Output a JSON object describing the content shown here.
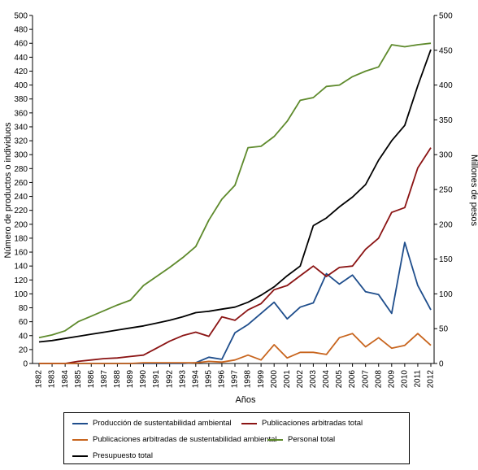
{
  "chart_data": {
    "type": "line",
    "xlabel": "Años",
    "ylabel_left": "Número de productos o individuos",
    "ylabel_right": "Millones de pesos",
    "ylim_left": [
      0,
      500
    ],
    "ylim_right": [
      0,
      500
    ],
    "yticks_left": [
      0,
      20,
      40,
      60,
      80,
      100,
      120,
      140,
      160,
      180,
      200,
      220,
      240,
      260,
      280,
      300,
      320,
      340,
      360,
      380,
      400,
      420,
      440,
      460,
      480,
      500
    ],
    "yticks_right": [
      0,
      50,
      100,
      150,
      200,
      250,
      300,
      350,
      400,
      450,
      500
    ],
    "grid": false,
    "legend_position": "bottom",
    "x": [
      "1982",
      "1983",
      "1984",
      "1985",
      "1986",
      "1987",
      "1988",
      "1989",
      "1990",
      "1991",
      "1992",
      "1993",
      "1994",
      "1995",
      "1996",
      "1997",
      "1998",
      "1999",
      "2000",
      "2001",
      "2002",
      "2003",
      "2004",
      "2005",
      "2006",
      "2007",
      "2008",
      "2009",
      "2010",
      "2011",
      "2012"
    ],
    "series": [
      {
        "name": "Producción de sustentabilidad ambiental",
        "color": "#1f4e8c",
        "axis": "left",
        "values": [
          0,
          0,
          0,
          0,
          0,
          0,
          0,
          0,
          0,
          0,
          0,
          0,
          1,
          9,
          6,
          44,
          56,
          72,
          88,
          64,
          81,
          87,
          129,
          114,
          127,
          103,
          99,
          72,
          174,
          112,
          77
        ]
      },
      {
        "name": "Publicaciones arbitradas total",
        "color": "#8b1414",
        "axis": "left",
        "values": [
          0,
          0,
          0,
          3,
          5,
          7,
          8,
          10,
          12,
          22,
          32,
          40,
          45,
          39,
          67,
          62,
          77,
          86,
          106,
          112,
          126,
          140,
          125,
          138,
          140,
          164,
          180,
          217,
          224,
          281,
          310
        ]
      },
      {
        "name": "Publicaciones arbitradas de sustentabilidad ambiental",
        "color": "#c8651e",
        "axis": "left",
        "values": [
          0,
          0,
          0,
          0,
          0,
          0,
          0,
          0,
          1,
          1,
          1,
          1,
          1,
          3,
          2,
          5,
          12,
          5,
          27,
          8,
          16,
          16,
          13,
          37,
          43,
          24,
          37,
          22,
          26,
          43,
          26
        ]
      },
      {
        "name": "Personal total",
        "color": "#5e8a2c",
        "axis": "left",
        "values": [
          37,
          41,
          47,
          60,
          68,
          76,
          84,
          91,
          112,
          125,
          138,
          152,
          168,
          206,
          236,
          256,
          310,
          312,
          326,
          348,
          378,
          382,
          398,
          400,
          412,
          420,
          426,
          458,
          455,
          458,
          460
        ]
      },
      {
        "name": "Presupuesto total",
        "color": "#000000",
        "axis": "right",
        "values": [
          31,
          33,
          36,
          39,
          42,
          45,
          48,
          51,
          54,
          58,
          62,
          67,
          73,
          75,
          78,
          81,
          88,
          98,
          110,
          126,
          140,
          198,
          209,
          225,
          239,
          257,
          292,
          320,
          342,
          399,
          451
        ]
      }
    ]
  }
}
